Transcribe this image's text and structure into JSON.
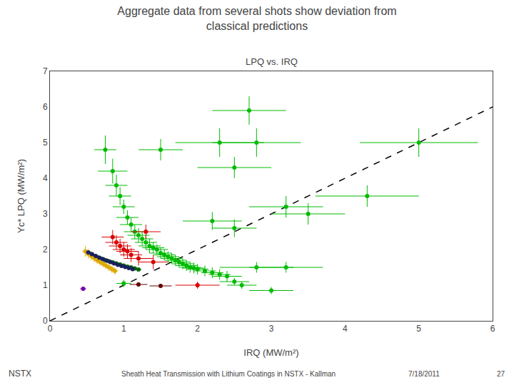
{
  "chart_data": {
    "type": "scatter",
    "title": "Aggregate data from several shots show deviation from\nclassical predictions",
    "subtitle": "LPQ vs. IRQ",
    "x_label": "IRQ (MW/m²)",
    "y_label": "Υc* LPQ (MW/m²)",
    "xlim": [
      0,
      6
    ],
    "ylim": [
      0,
      7
    ],
    "xticks": [
      0,
      1,
      2,
      3,
      4,
      5,
      6
    ],
    "yticks": [
      0,
      1,
      2,
      3,
      4,
      5,
      6,
      7
    ],
    "grid": false,
    "annotations": [
      "NSTX",
      "Sheath Heat Transmission with Lithium Coatings in NSTX - Kallman",
      "7/18/2011",
      "27"
    ],
    "series": [
      {
        "type": "line",
        "line_style": "dashed",
        "color": "#000000",
        "x": [
          0,
          6
        ],
        "values": [
          0,
          6
        ]
      },
      {
        "color": "#00BB00",
        "marker": "circle",
        "x": [
          0.75,
          0.85,
          0.9,
          0.95,
          1.0,
          1.05,
          1.1,
          1.15,
          1.2,
          1.25,
          1.3,
          1.35,
          1.4,
          1.45,
          1.5,
          1.55,
          1.6,
          1.65,
          1.7,
          1.75,
          1.8,
          1.85,
          1.9,
          1.95,
          2.0,
          2.1,
          2.2,
          2.3,
          2.4,
          2.5,
          2.6,
          2.7,
          2.8,
          2.5,
          3.2,
          3.5,
          4.3,
          5.0,
          1.0,
          1.5,
          2.8,
          3.0,
          3.2,
          2.2,
          2.5,
          2.3
        ],
        "values": [
          4.8,
          4.2,
          3.8,
          3.5,
          3.2,
          2.9,
          2.7,
          2.5,
          2.4,
          2.3,
          2.2,
          2.1,
          2.05,
          2.0,
          1.9,
          1.85,
          1.8,
          1.75,
          1.7,
          1.65,
          1.6,
          1.55,
          1.5,
          1.48,
          1.45,
          1.4,
          1.35,
          1.3,
          1.25,
          1.1,
          1.0,
          5.9,
          5.0,
          4.3,
          3.2,
          3.0,
          3.5,
          5.0,
          1.05,
          4.8,
          1.5,
          0.85,
          1.5,
          2.8,
          2.6,
          5.0
        ],
        "xerr": [
          0.15,
          0.2,
          0.15,
          0.15,
          0.15,
          0.15,
          0.15,
          0.15,
          0.15,
          0.15,
          0.15,
          0.15,
          0.15,
          0.15,
          0.15,
          0.15,
          0.15,
          0.15,
          0.15,
          0.15,
          0.15,
          0.15,
          0.15,
          0.15,
          0.15,
          0.15,
          0.15,
          0.15,
          0.2,
          0.2,
          0.2,
          0.5,
          0.6,
          0.5,
          0.5,
          0.5,
          0.7,
          0.8,
          0.1,
          0.3,
          0.5,
          0.3,
          0.5,
          0.4,
          0.3,
          0.6
        ],
        "yerr": [
          0.4,
          0.35,
          0.3,
          0.25,
          0.2,
          0.2,
          0.2,
          0.2,
          0.2,
          0.2,
          0.2,
          0.2,
          0.15,
          0.15,
          0.15,
          0.15,
          0.15,
          0.15,
          0.15,
          0.15,
          0.15,
          0.15,
          0.15,
          0.15,
          0.15,
          0.15,
          0.15,
          0.15,
          0.15,
          0.1,
          0.1,
          0.4,
          0.4,
          0.3,
          0.3,
          0.3,
          0.3,
          0.4,
          0.1,
          0.3,
          0.15,
          0.1,
          0.15,
          0.25,
          0.25,
          0.4
        ]
      },
      {
        "color": "#660000",
        "marker": "circle",
        "x": [
          1.2,
          1.5
        ],
        "values": [
          1.02,
          0.98
        ],
        "xerr": [
          0.12,
          0.15
        ],
        "yerr": [
          0.04,
          0.04
        ]
      },
      {
        "color": "#DD0000",
        "marker": "circle",
        "x": [
          0.85,
          0.9,
          0.95,
          1.0,
          1.05,
          1.1,
          1.2,
          1.3,
          1.4,
          2.0
        ],
        "values": [
          2.35,
          2.2,
          2.1,
          2.0,
          1.95,
          1.85,
          1.75,
          2.5,
          1.65,
          1.0
        ],
        "xerr": [
          0.15,
          0.15,
          0.15,
          0.15,
          0.15,
          0.15,
          0.2,
          0.2,
          0.2,
          0.3
        ],
        "yerr": [
          0.2,
          0.2,
          0.2,
          0.2,
          0.2,
          0.2,
          0.2,
          0.2,
          0.2,
          0.1
        ]
      },
      {
        "color": "#006600",
        "marker": "circle",
        "x": [
          0.55,
          0.6,
          0.65,
          0.7,
          0.75,
          0.8,
          0.85,
          0.9,
          0.95,
          1.0,
          1.05,
          1.1,
          1.15,
          1.2
        ],
        "values": [
          1.88,
          1.82,
          1.78,
          1.74,
          1.7,
          1.67,
          1.64,
          1.61,
          1.58,
          1.55,
          1.52,
          1.5,
          1.47,
          1.44
        ],
        "xerr": [
          0.04,
          0.04,
          0.04,
          0.04,
          0.04,
          0.04,
          0.04,
          0.04,
          0.04,
          0.04,
          0.04,
          0.04,
          0.04,
          0.04
        ],
        "yerr": [
          0.04,
          0.04,
          0.04,
          0.04,
          0.04,
          0.04,
          0.04,
          0.04,
          0.04,
          0.04,
          0.04,
          0.04,
          0.04,
          0.04
        ]
      },
      {
        "color": "#DDAA00",
        "marker": "circle",
        "x": [
          0.48,
          0.52,
          0.56,
          0.6,
          0.64,
          0.68,
          0.72,
          0.76,
          0.8,
          0.84,
          0.88
        ],
        "values": [
          1.95,
          1.88,
          1.82,
          1.76,
          1.7,
          1.65,
          1.6,
          1.55,
          1.5,
          1.45,
          1.4
        ],
        "xerr": [
          0.04,
          0.04,
          0.04,
          0.04,
          0.04,
          0.04,
          0.04,
          0.04,
          0.04,
          0.04,
          0.04
        ],
        "yerr": [
          0.15,
          0.13,
          0.12,
          0.11,
          0.1,
          0.1,
          0.1,
          0.1,
          0.1,
          0.1,
          0.1
        ]
      },
      {
        "color": "#1a2060",
        "marker": "circle",
        "x": [
          0.52,
          0.57,
          0.62,
          0.67,
          0.72,
          0.77,
          0.82,
          0.87,
          0.92,
          0.97,
          1.02,
          1.07,
          1.12
        ],
        "values": [
          1.92,
          1.87,
          1.82,
          1.77,
          1.73,
          1.69,
          1.65,
          1.61,
          1.57,
          1.54,
          1.51,
          1.48,
          1.45
        ],
        "xerr": [
          0.03,
          0.03,
          0.03,
          0.03,
          0.03,
          0.03,
          0.03,
          0.03,
          0.03,
          0.03,
          0.03,
          0.03,
          0.03
        ],
        "yerr": [
          0.03,
          0.03,
          0.03,
          0.03,
          0.03,
          0.03,
          0.03,
          0.03,
          0.03,
          0.03,
          0.03,
          0.03,
          0.03
        ]
      },
      {
        "color": "#7700AA",
        "marker": "circle",
        "x": [
          0.45
        ],
        "values": [
          0.9
        ],
        "xerr": [
          0.04
        ],
        "yerr": [
          0.04
        ]
      }
    ]
  }
}
